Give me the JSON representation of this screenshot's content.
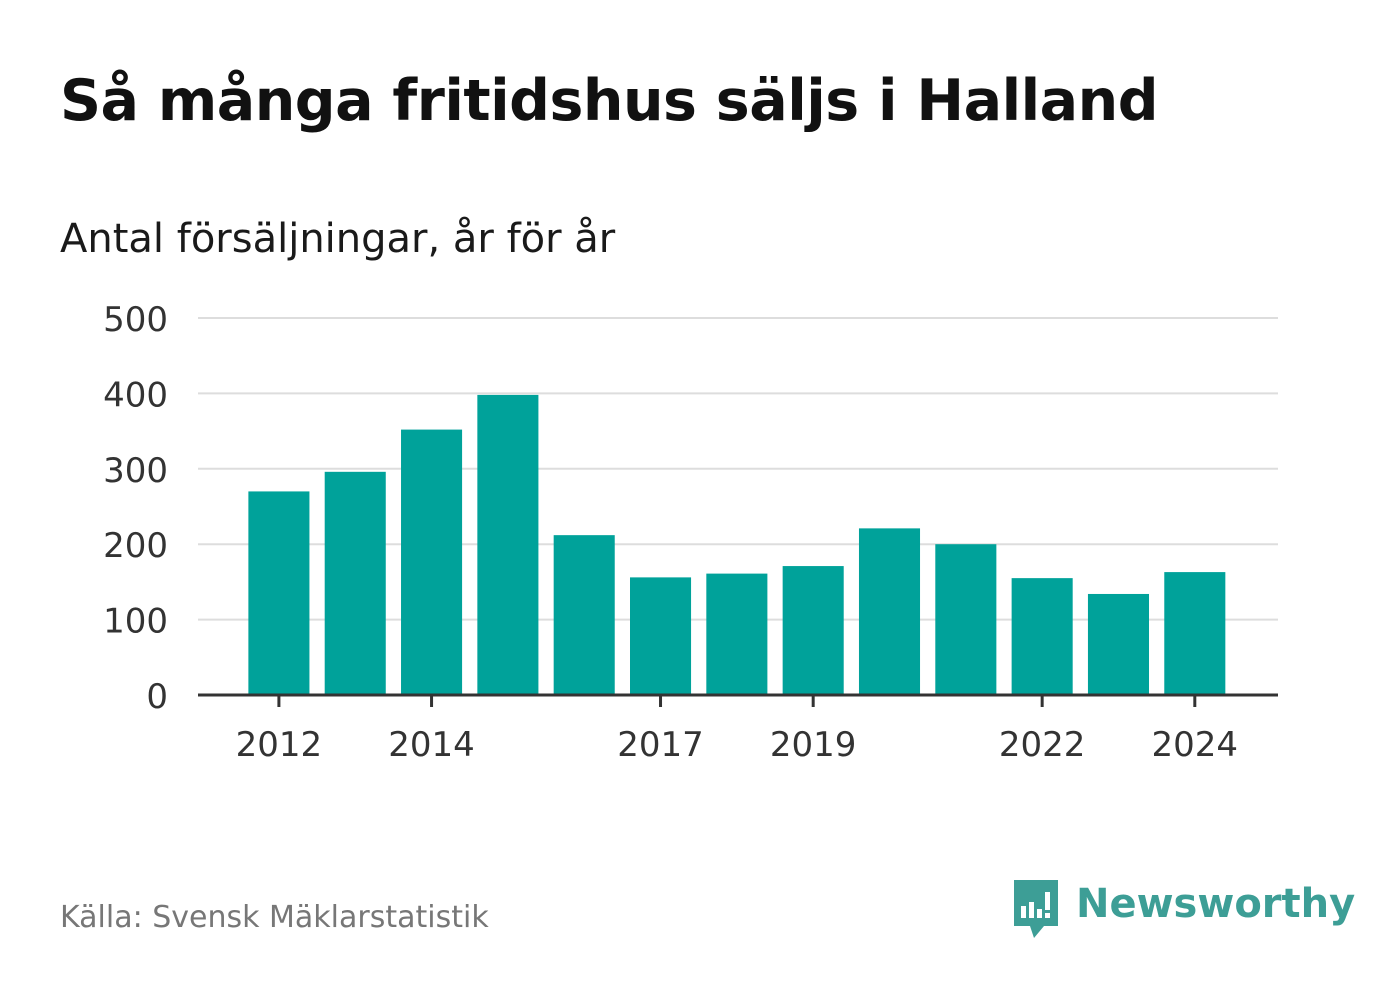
{
  "title": "Så många fritidshus säljs i Halland",
  "subtitle": "Antal försäljningar, år för år",
  "source": "Källa: Svensk Mäklarstatistik",
  "brand": {
    "name": "Newsworthy",
    "icon": "newsworthy-logo-icon",
    "color": "#3d9e96"
  },
  "chart_data": {
    "type": "bar",
    "categories": [
      "2012",
      "2013",
      "2014",
      "2015",
      "2016",
      "2017",
      "2018",
      "2019",
      "2020",
      "2021",
      "2022",
      "2023",
      "2024"
    ],
    "values": [
      270,
      296,
      352,
      398,
      212,
      156,
      161,
      171,
      221,
      200,
      155,
      134,
      163
    ],
    "x_tick_labels": [
      "2012",
      "2014",
      "2017",
      "2019",
      "2022",
      "2024"
    ],
    "y_ticks": [
      0,
      100,
      200,
      300,
      400,
      500
    ],
    "ylim": [
      0,
      500
    ],
    "grid": true,
    "bar_color": "#00a29a",
    "grid_color": "#dddddd",
    "axis_color": "#333333"
  }
}
